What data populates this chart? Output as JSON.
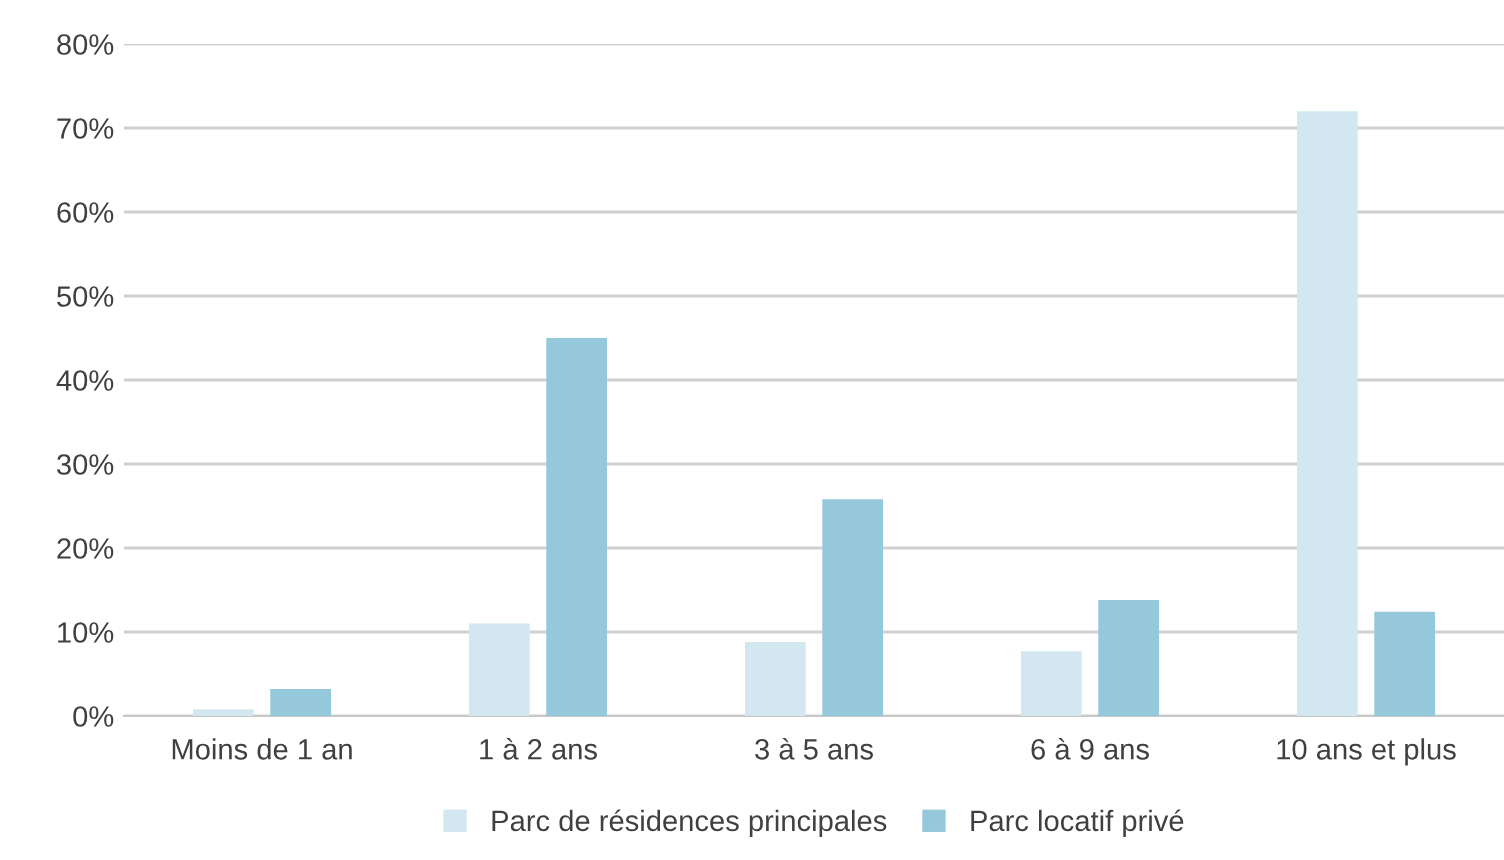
{
  "chart_data": {
    "type": "bar",
    "categories": [
      "Moins de 1 an",
      "1 à 2 ans",
      "3 à 5 ans",
      "6 à 9 ans",
      "10 ans et plus"
    ],
    "series": [
      {
        "name": "Parc de résidences principales",
        "color": "#d2e7f0",
        "values": [
          0.8,
          11,
          8.8,
          7.7,
          72
        ]
      },
      {
        "name": "Parc locatif privé",
        "color": "#96c8dc",
        "values": [
          3.2,
          45,
          25.8,
          13.8,
          12.4
        ]
      }
    ],
    "ylim": [
      0,
      80
    ],
    "yticks": [
      {
        "value": 0,
        "label": "0%"
      },
      {
        "value": 10,
        "label": "10%"
      },
      {
        "value": 20,
        "label": "20%"
      },
      {
        "value": 30,
        "label": "30%"
      },
      {
        "value": 40,
        "label": "40%"
      },
      {
        "value": 50,
        "label": "50%"
      },
      {
        "value": 60,
        "label": "60%"
      },
      {
        "value": 70,
        "label": "70%"
      },
      {
        "value": 80,
        "label": "80%"
      }
    ],
    "grid": "y",
    "legend": "bottom"
  }
}
